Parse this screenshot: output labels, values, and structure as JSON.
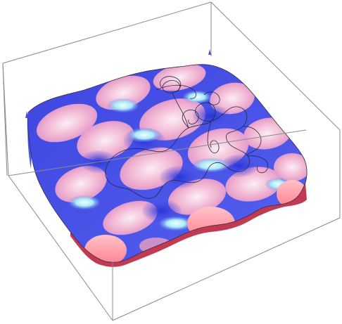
{
  "figure": {
    "kind": "3d-surface-plot",
    "surface_colors": {
      "blue": "#4a52e6",
      "deep_blue": "#2f3bd9",
      "pink": "#f0a9c6",
      "light": "#f6e9f6",
      "cyan_highlight": "#9fe9f6",
      "salmon": "#ff8f9c"
    },
    "box_line_color": "#8a8a8a",
    "trajectory_color": "#1f2a44",
    "background": "#ffffff"
  }
}
